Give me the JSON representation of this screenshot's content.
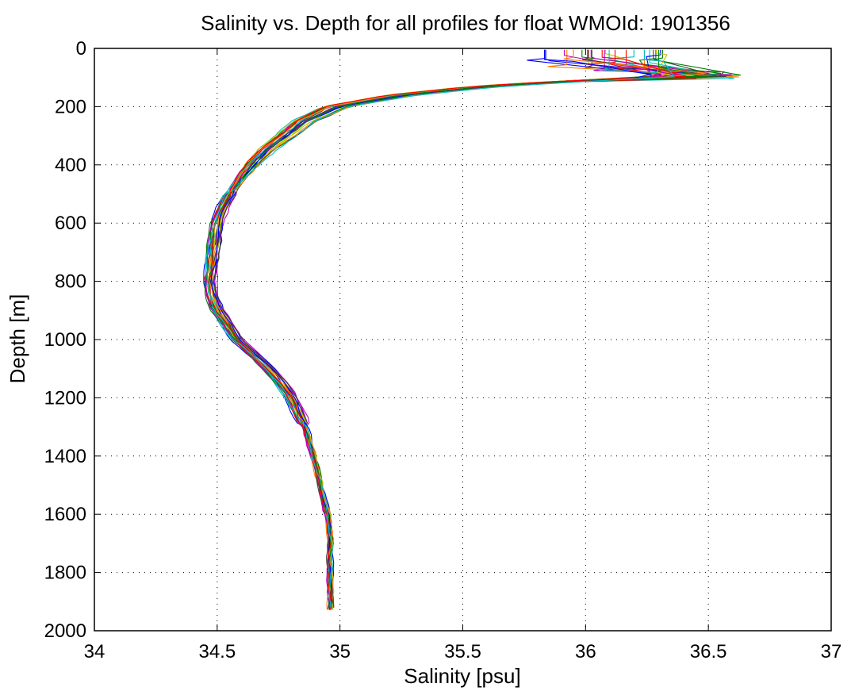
{
  "chart_data": {
    "type": "line",
    "title": "Salinity vs. Depth for all profiles for float WMOId: 1901356",
    "xlabel": "Salinity [psu]",
    "ylabel": "Depth [m]",
    "xlim": [
      34,
      37
    ],
    "ylim": [
      0,
      2000
    ],
    "y_axis_reversed": true,
    "grid": true,
    "xticks": [
      "34",
      "34.5",
      "35",
      "35.5",
      "36",
      "36.5",
      "37"
    ],
    "yticks": [
      "0",
      "200",
      "400",
      "600",
      "800",
      "1000",
      "1200",
      "1400",
      "1600",
      "1800",
      "2000"
    ],
    "xtick_values": [
      34,
      34.5,
      35,
      35.5,
      36,
      36.5,
      37
    ],
    "ytick_values": [
      0,
      200,
      400,
      600,
      800,
      1000,
      1200,
      1400,
      1600,
      1800,
      2000
    ],
    "series_colors": [
      "#0000ff",
      "#008000",
      "#ff0000",
      "#00bfbf",
      "#bf00bf",
      "#bfbf00",
      "#404040",
      "#ff7f00"
    ],
    "profile_count": 28,
    "mean_profile": {
      "depth": [
        0,
        60,
        80,
        95,
        110,
        130,
        160,
        200,
        250,
        300,
        350,
        400,
        450,
        500,
        550,
        600,
        650,
        700,
        750,
        800,
        850,
        900,
        950,
        1000,
        1050,
        1100,
        1150,
        1200,
        1250,
        1300,
        1400,
        1500,
        1600,
        1700,
        1800,
        1930
      ],
      "salinity": [
        36.18,
        36.18,
        36.3,
        36.5,
        36.0,
        35.6,
        35.25,
        34.98,
        34.85,
        34.78,
        34.7,
        34.64,
        34.59,
        34.55,
        34.52,
        34.5,
        34.49,
        34.48,
        34.475,
        34.47,
        34.48,
        34.5,
        34.54,
        34.58,
        34.65,
        34.71,
        34.76,
        34.8,
        34.83,
        34.86,
        34.89,
        34.92,
        34.95,
        34.96,
        34.96,
        34.96
      ]
    }
  }
}
